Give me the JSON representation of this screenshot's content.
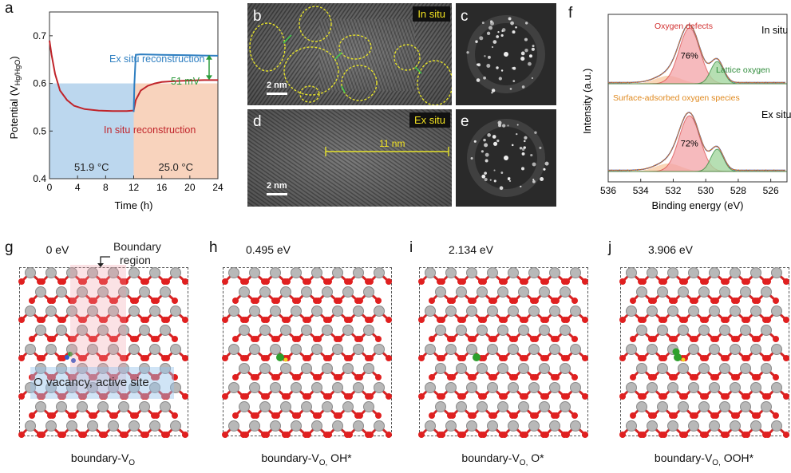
{
  "panels": {
    "a": "a",
    "b": "b",
    "c": "c",
    "d": "d",
    "e": "e",
    "f": "f",
    "g": "g",
    "h": "h",
    "i": "i",
    "j": "j"
  },
  "chart_data": [
    {
      "type": "line",
      "panel": "a",
      "xlabel": "Time (h)",
      "ylabel": "Potential (V",
      "ylabel_sub": "Hg/HgO",
      "ylabel_end": ")",
      "xlim": [
        0,
        24
      ],
      "ylim": [
        0.4,
        0.75
      ],
      "x_ticks": [
        0,
        4,
        8,
        12,
        16,
        20,
        24
      ],
      "y_ticks": [
        0.4,
        0.5,
        0.6,
        0.7
      ],
      "series": [
        {
          "name": "In situ reconstruction",
          "color": "#c0242a",
          "x": [
            0,
            0.3,
            0.8,
            1.5,
            2.5,
            3.5,
            5,
            7,
            9,
            11,
            12,
            12.3,
            13,
            14,
            15,
            16,
            18,
            20,
            22,
            24
          ],
          "y": [
            0.69,
            0.66,
            0.62,
            0.585,
            0.565,
            0.553,
            0.546,
            0.543,
            0.542,
            0.542,
            0.543,
            0.565,
            0.585,
            0.595,
            0.6,
            0.603,
            0.605,
            0.606,
            0.607,
            0.607
          ]
        },
        {
          "name": "Ex situ reconstruction",
          "color": "#2f7fc1",
          "x": [
            12,
            12.1,
            12.3,
            13,
            16,
            20,
            24
          ],
          "y": [
            0.54,
            0.6,
            0.66,
            0.661,
            0.66,
            0.659,
            0.658
          ]
        }
      ],
      "regions": [
        {
          "label": "51.9 °C",
          "x": [
            0,
            12
          ],
          "y_top": 0.6,
          "color": "#bcd7ee"
        },
        {
          "label": "25.0 °C",
          "x": [
            12,
            24
          ],
          "y_top": 0.6,
          "color": "#f8d3bd"
        }
      ],
      "annotations": {
        "ex_situ": "Ex situ reconstruction",
        "in_situ": "In situ reconstruction",
        "delta": "51 mV"
      }
    },
    {
      "type": "area",
      "panel": "f",
      "xlabel": "Binding energy (eV)",
      "ylabel": "Intensity (a.u.)",
      "x_ticks": [
        536,
        534,
        532,
        530,
        528,
        526
      ],
      "xlim": [
        536,
        525
      ],
      "spectra": [
        {
          "name": "In situ",
          "defect_pct": "76%"
        },
        {
          "name": "Ex situ",
          "defect_pct": "72%"
        }
      ],
      "labels": {
        "defects": "Oxygen defects",
        "lattice": "Lattice oxygen",
        "surface": "Surface-adsorbed oxygen species"
      }
    }
  ],
  "tem": {
    "in_situ_tag": "In situ",
    "ex_situ_tag": "Ex situ",
    "scale_b": "2 nm",
    "scale_d": "2 nm",
    "length": "11 nm"
  },
  "dft": {
    "energies": [
      "0 eV",
      "0.495 eV",
      "2.134 eV",
      "3.906 eV"
    ],
    "boundary_label_1": "Boundary",
    "boundary_label_2": "region",
    "vacancy_label": "O vacancy, active site",
    "captions": [
      {
        "main": "boundary-V",
        "sub": "O",
        "tail": ""
      },
      {
        "main": "boundary-V",
        "sub": "O,",
        "tail": " OH*"
      },
      {
        "main": "boundary-V",
        "sub": "O,",
        "tail": " O*"
      },
      {
        "main": "boundary-V",
        "sub": "O,",
        "tail": " OOH*"
      }
    ]
  }
}
